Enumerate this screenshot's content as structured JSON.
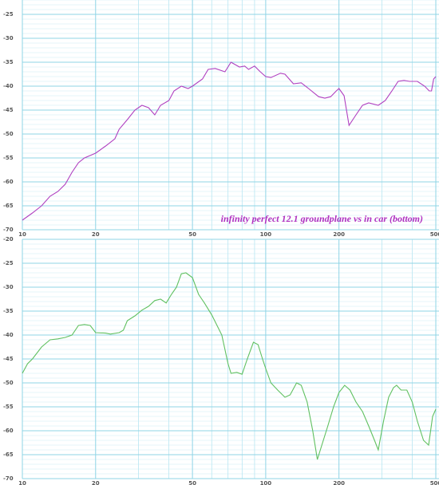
{
  "chart_data": [
    {
      "type": "line",
      "log_x": true,
      "grid": true,
      "annotation": "infinity perfect 12.1 groundplane vs in car (bottom)",
      "annotation_color": "#b030c0",
      "xlim": [
        10,
        500
      ],
      "xticks": [
        10,
        20,
        50,
        100,
        200,
        500
      ],
      "minor_xticks": [
        30,
        40,
        60,
        70,
        80,
        90,
        300,
        400
      ],
      "ylim": [
        -70,
        -22
      ],
      "yticks": [
        -25,
        -30,
        -35,
        -40,
        -45,
        -50,
        -55,
        -60,
        -65,
        -70
      ],
      "x": [
        10,
        11,
        12,
        13,
        14,
        15,
        16,
        17,
        18,
        20,
        22,
        24,
        25,
        27,
        29,
        31,
        33,
        35,
        37,
        40,
        42,
        45,
        48,
        50,
        55,
        58,
        62,
        68,
        72,
        78,
        82,
        85,
        90,
        95,
        100,
        105,
        115,
        120,
        130,
        140,
        150,
        165,
        175,
        185,
        195,
        200,
        210,
        220,
        235,
        250,
        265,
        290,
        310,
        330,
        350,
        370,
        390,
        420,
        450,
        470,
        480,
        490,
        500
      ],
      "series": [
        {
          "color": "#b040c0",
          "values": [
            -68,
            -66.5,
            -65,
            -63,
            -62,
            -60.5,
            -58,
            -56,
            -55,
            -54,
            -52.5,
            -51,
            -49,
            -47,
            -45,
            -44,
            -44.5,
            -46,
            -44,
            -43,
            -41,
            -40,
            -40.5,
            -40,
            -38.5,
            -36.5,
            -36.3,
            -37,
            -35,
            -36,
            -35.8,
            -36.5,
            -35.8,
            -37,
            -38,
            -38.2,
            -37.3,
            -37.5,
            -39.5,
            -39.3,
            -40.5,
            -42.2,
            -42.5,
            -42.2,
            -41,
            -40.5,
            -42,
            -48.2,
            -46,
            -44,
            -43.5,
            -44,
            -43,
            -41,
            -39,
            -38.8,
            -39,
            -39,
            -40,
            -41,
            -41,
            -38.5,
            -38
          ]
        }
      ]
    },
    {
      "type": "line",
      "log_x": true,
      "grid": true,
      "xlim": [
        10,
        500
      ],
      "xticks": [
        10,
        20,
        50,
        100,
        200,
        500
      ],
      "minor_xticks": [
        30,
        40,
        60,
        70,
        80,
        90,
        300,
        400
      ],
      "ylim": [
        -70,
        -20
      ],
      "yticks": [
        -20,
        -25,
        -30,
        -35,
        -40,
        -45,
        -50,
        -55,
        -60,
        -65,
        -70
      ],
      "x": [
        10,
        10.5,
        11,
        12,
        13,
        14,
        15,
        16,
        17,
        18,
        19,
        20,
        22,
        23,
        25,
        26,
        27,
        29,
        31,
        33,
        35,
        37,
        39,
        41,
        43,
        45,
        47,
        50,
        53,
        56,
        60,
        66,
        70,
        72,
        76,
        80,
        84,
        89,
        93,
        97,
        100,
        105,
        112,
        120,
        126,
        134,
        140,
        148,
        156,
        163,
        170,
        180,
        190,
        200,
        211,
        222,
        235,
        250,
        265,
        280,
        290,
        305,
        320,
        335,
        345,
        360,
        380,
        400,
        420,
        445,
        467,
        485,
        500
      ],
      "series": [
        {
          "color": "#60c060",
          "values": [
            -48,
            -46,
            -45,
            -42.5,
            -41,
            -40.8,
            -40.5,
            -40,
            -38,
            -37.8,
            -38,
            -39.5,
            -39.6,
            -39.8,
            -39.5,
            -39,
            -37,
            -36,
            -34.8,
            -34,
            -32.8,
            -32.5,
            -33.3,
            -31.5,
            -30,
            -27.2,
            -27,
            -28,
            -31.5,
            -33.3,
            -35.8,
            -40,
            -46,
            -48,
            -47.8,
            -48.2,
            -45,
            -41.5,
            -42,
            -45,
            -47,
            -50,
            -51.5,
            -53,
            -52.5,
            -50,
            -50.5,
            -54,
            -60,
            -66,
            -63,
            -59,
            -55,
            -52,
            -50.5,
            -51.5,
            -54,
            -56,
            -59,
            -62,
            -64,
            -58,
            -53,
            -51,
            -50.5,
            -51.5,
            -51.5,
            -54,
            -58,
            -62,
            -63,
            -57,
            -55.5
          ]
        }
      ]
    }
  ]
}
